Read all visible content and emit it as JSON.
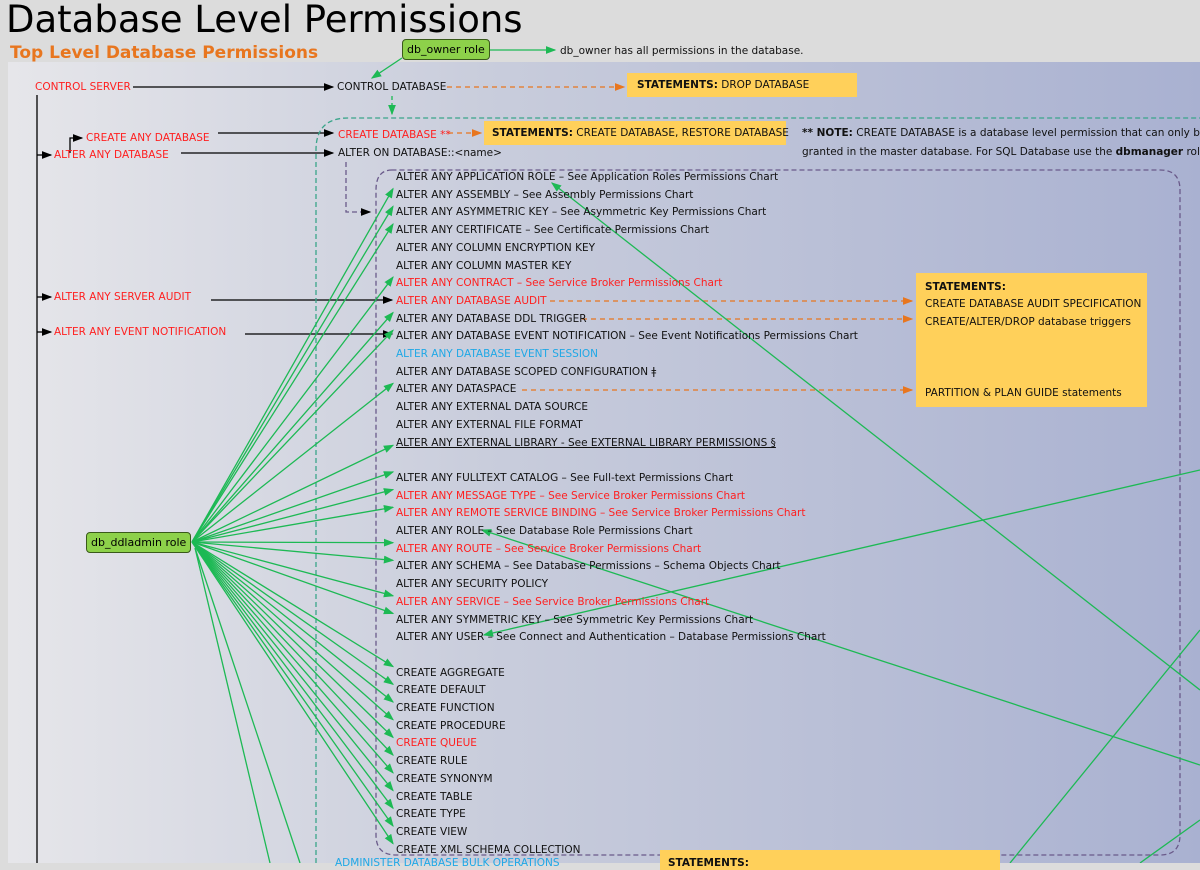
{
  "title": "Database Level Permissions",
  "subtitle": "Top Level Database Permissions",
  "db_owner": {
    "label": "db_owner role",
    "note": "db_owner has all permissions in the database."
  },
  "db_ddladmin": {
    "label": "db_ddladmin role"
  },
  "server_perms": {
    "control_server": "CONTROL SERVER",
    "create_any_database": "CREATE ANY DATABASE",
    "alter_any_database": "ALTER ANY DATABASE",
    "alter_any_server_audit": "ALTER ANY SERVER AUDIT",
    "alter_any_event_notification": "ALTER ANY EVENT NOTIFICATION"
  },
  "db_perms": {
    "control_database": "CONTROL DATABASE",
    "create_database": "CREATE DATABASE **",
    "alter_on_database": "ALTER ON DATABASE::<name>"
  },
  "statements": {
    "label": "STATEMENTS:",
    "drop": "DROP DATABASE",
    "create": "CREATE DATABASE, RESTORE DATABASE",
    "box_items": [
      "CREATE DATABASE AUDIT SPECIFICATION",
      "CREATE/ALTER/DROP database triggers",
      "PARTITION & PLAN GUIDE statements"
    ],
    "bottom_label": "STATEMENTS:"
  },
  "note": {
    "prefix": "** NOTE:",
    "line1": "CREATE DATABASE is a database level permission that can only be",
    "line2a": "granted in the master database. For SQL Database use the",
    "line2b": "dbmanager",
    "line2c": "role."
  },
  "colors": {
    "server_perm": "#ff1f1f",
    "new_perm": "#1fa8e6",
    "statement_box": "#ffd05a",
    "role_box": "#8dd14a",
    "role_arrow": "#1db954",
    "statement_arrow": "#e8761f",
    "title_orange": "#e8761f"
  },
  "rows": [
    {
      "text": "ALTER ANY APPLICATION ROLE – See Application Roles Permissions Chart",
      "style": "normal"
    },
    {
      "text": "ALTER ANY ASSEMBLY – See Assembly Permissions Chart",
      "style": "normal"
    },
    {
      "text": "ALTER ANY ASYMMETRIC KEY – See Asymmetric Key Permissions Chart",
      "style": "normal"
    },
    {
      "text": "ALTER ANY CERTIFICATE – See Certificate Permissions Chart",
      "style": "normal"
    },
    {
      "text": "ALTER ANY COLUMN ENCRYPTION KEY",
      "style": "normal"
    },
    {
      "text": "ALTER ANY COLUMN MASTER KEY",
      "style": "normal"
    },
    {
      "text": "ALTER ANY CONTRACT – See Service Broker Permissions Chart",
      "style": "red"
    },
    {
      "text": "ALTER ANY DATABASE AUDIT",
      "style": "red"
    },
    {
      "text": "ALTER ANY DATABASE DDL TRIGGER",
      "style": "normal"
    },
    {
      "text": "ALTER ANY DATABASE EVENT NOTIFICATION – See Event Notifications Permissions Chart",
      "style": "normal"
    },
    {
      "text": "ALTER ANY DATABASE EVENT SESSION",
      "style": "blue"
    },
    {
      "text": "ALTER ANY DATABASE SCOPED CONFIGURATION ǂ",
      "style": "normal"
    },
    {
      "text": "ALTER ANY DATASPACE",
      "style": "normal"
    },
    {
      "text": "ALTER ANY EXTERNAL DATA SOURCE",
      "style": "normal"
    },
    {
      "text": "ALTER ANY EXTERNAL FILE FORMAT",
      "style": "normal"
    },
    {
      "text": "ALTER ANY EXTERNAL LIBRARY - See EXTERNAL LIBRARY PERMISSIONS §",
      "style": "underline"
    },
    {
      "text": "",
      "style": "normal"
    },
    {
      "text": "ALTER ANY FULLTEXT CATALOG – See Full-text Permissions Chart",
      "style": "normal"
    },
    {
      "text": "ALTER ANY MESSAGE TYPE – See Service Broker Permissions Chart",
      "style": "red"
    },
    {
      "text": "ALTER ANY REMOTE SERVICE BINDING – See Service Broker Permissions Chart",
      "style": "red"
    },
    {
      "text": "ALTER ANY ROLE – See Database Role Permissions Chart",
      "style": "normal"
    },
    {
      "text": "ALTER ANY ROUTE – See Service Broker Permissions Chart",
      "style": "red"
    },
    {
      "text": "ALTER ANY SCHEMA – See Database Permissions – Schema Objects Chart",
      "style": "normal"
    },
    {
      "text": "ALTER ANY SECURITY POLICY",
      "style": "normal"
    },
    {
      "text": "ALTER ANY SERVICE – See Service Broker Permissions Chart",
      "style": "red"
    },
    {
      "text": "ALTER ANY SYMMETRIC KEY – See Symmetric Key Permissions Chart",
      "style": "normal"
    },
    {
      "text": "ALTER ANY USER – See Connect and Authentication – Database Permissions Chart",
      "style": "normal"
    },
    {
      "text": "",
      "style": "normal"
    },
    {
      "text": "CREATE AGGREGATE",
      "style": "normal"
    },
    {
      "text": "CREATE DEFAULT",
      "style": "normal"
    },
    {
      "text": "CREATE FUNCTION",
      "style": "normal"
    },
    {
      "text": "CREATE PROCEDURE",
      "style": "normal"
    },
    {
      "text": "CREATE QUEUE",
      "style": "red"
    },
    {
      "text": "CREATE RULE",
      "style": "normal"
    },
    {
      "text": "CREATE SYNONYM",
      "style": "normal"
    },
    {
      "text": "CREATE TABLE",
      "style": "normal"
    },
    {
      "text": "CREATE TYPE",
      "style": "normal"
    },
    {
      "text": "CREATE VIEW",
      "style": "normal"
    },
    {
      "text": "CREATE XML SCHEMA COLLECTION",
      "style": "normal"
    }
  ],
  "bottom_row": "ADMINISTER DATABASE BULK OPERATIONS"
}
